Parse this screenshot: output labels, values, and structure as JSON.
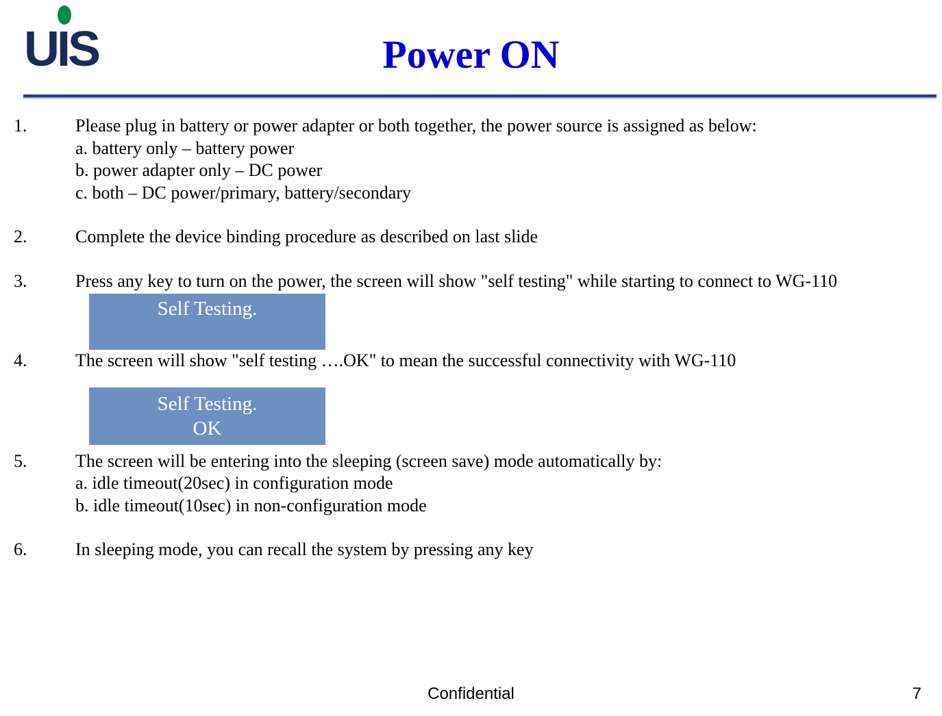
{
  "colors": {
    "title": "#0000cc",
    "rule": "#2a3a8a",
    "screen_bg": "#6e8fc1",
    "screen_text": "#ffffff",
    "logo_text": "#1a2a5a",
    "logo_dot": "#008a4b",
    "body_text": "#000000",
    "page_bg": "#ffffff"
  },
  "typography": {
    "title_fontsize_pt": 44,
    "body_fontsize_pt": 20,
    "screen_fontsize_pt": 22,
    "footer_fontsize_pt": 18,
    "body_font": "Times New Roman",
    "footer_font": "Arial"
  },
  "logo": {
    "text": "UIS"
  },
  "title": "Power ON",
  "items": [
    {
      "num": "1.",
      "lines": [
        "Please plug in battery or power adapter or both together, the power source is assigned as below:",
        "a. battery only – battery power",
        "b. power adapter only – DC power",
        "c. both – DC power/primary, battery/secondary"
      ]
    },
    {
      "num": "2.",
      "lines": [
        "Complete the device binding procedure as described on last slide"
      ]
    },
    {
      "num": "3.",
      "lines": [
        "Press any key to turn on the power, the screen will show \"self testing\" while starting to connect to WG-110"
      ]
    },
    {
      "num": "4.",
      "lines": [
        "The screen will show \"self testing ….OK\" to mean the successful connectivity with WG-110"
      ]
    },
    {
      "num": "5.",
      "lines": [
        "The screen will be entering into the sleeping (screen save) mode automatically by:",
        "a. idle timeout(20sec) in configuration mode",
        "b. idle timeout(10sec) in non-configuration mode"
      ]
    },
    {
      "num": "6.",
      "lines": [
        "In sleeping mode, you can recall the system by pressing any key"
      ]
    }
  ],
  "screen_box_1": {
    "line1": "Self  Testing."
  },
  "screen_box_2": {
    "line1": "Self  Testing.",
    "line2": "OK"
  },
  "footer": "Confidential",
  "page_number": "7"
}
